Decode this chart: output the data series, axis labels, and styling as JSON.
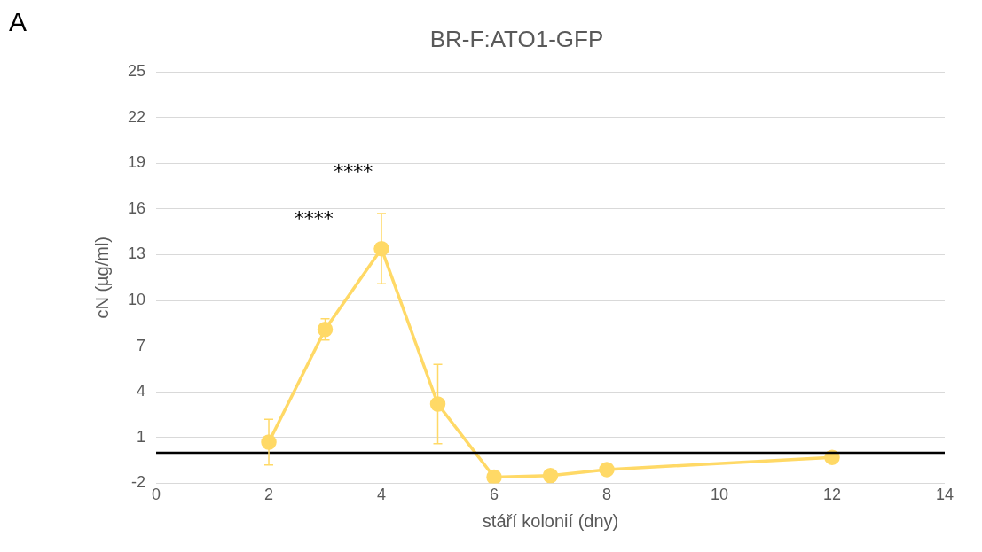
{
  "chart_data": {
    "type": "line",
    "title": "BR-F:ATO1-GFP",
    "xlabel": "stáří kolonií (dny)",
    "ylabel": "cN (µg/ml)",
    "x": [
      2,
      3,
      4,
      5,
      6,
      7,
      8,
      12
    ],
    "series": [
      {
        "color": "#ffd966",
        "values": [
          0.7,
          8.1,
          13.4,
          3.2,
          -1.6,
          -1.5,
          -1.1,
          -0.3
        ],
        "errors": [
          1.5,
          0.7,
          2.3,
          2.6,
          null,
          null,
          null,
          null
        ]
      }
    ],
    "xlim": [
      0,
      14
    ],
    "xticks": [
      0,
      2,
      4,
      6,
      8,
      10,
      12,
      14
    ],
    "ylim": [
      -2,
      25
    ],
    "yticks": [
      -2,
      1,
      4,
      7,
      10,
      13,
      16,
      19,
      22,
      25
    ],
    "grid": "y",
    "legend": false,
    "marker": "circle",
    "line_style": "solid",
    "ref_lines": [
      {
        "axis": "y",
        "value": 0,
        "color": "#000000"
      }
    ],
    "annotations": [
      "A",
      "****",
      "****"
    ]
  }
}
